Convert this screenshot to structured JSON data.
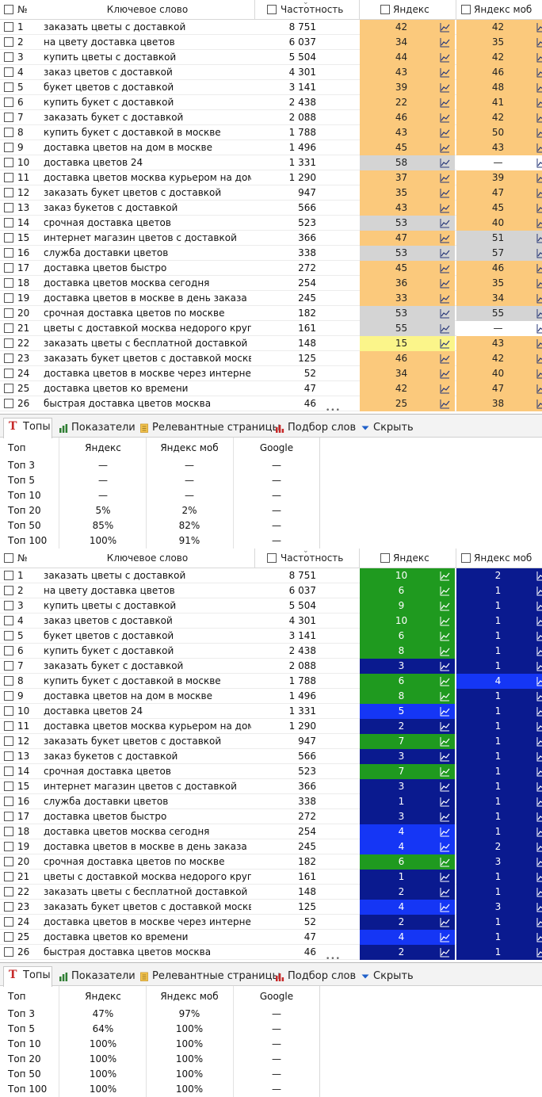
{
  "columns": {
    "num": "№",
    "keyword": "Ключевое слово",
    "freq": "Частотность",
    "yandex": "Яндекс",
    "yandex_mob": "Яндекс моб"
  },
  "tabs": [
    {
      "label": "Топы"
    },
    {
      "label": "Показатели"
    },
    {
      "label": "Релевантные страницы"
    },
    {
      "label": "Подбор слов"
    },
    {
      "label": "Скрыть"
    }
  ],
  "tops_header": {
    "top": "Топ",
    "yandex": "Яндекс",
    "yandex_mob": "Яндекс моб",
    "google": "Google"
  },
  "keywords": [
    {
      "n": "1",
      "kw": "заказать цветы с доставкой",
      "f": "8 751"
    },
    {
      "n": "2",
      "kw": "на цвету доставка цветов",
      "f": "6 037"
    },
    {
      "n": "3",
      "kw": "купить цветы с доставкой",
      "f": "5 504"
    },
    {
      "n": "4",
      "kw": "заказ цветов с доставкой",
      "f": "4 301"
    },
    {
      "n": "5",
      "kw": "букет цветов с доставкой",
      "f": "3 141"
    },
    {
      "n": "6",
      "kw": "купить букет с доставкой",
      "f": "2 438"
    },
    {
      "n": "7",
      "kw": "заказать букет с доставкой",
      "f": "2 088"
    },
    {
      "n": "8",
      "kw": "купить букет с доставкой в москве",
      "f": "1 788"
    },
    {
      "n": "9",
      "kw": "доставка цветов на дом в москве",
      "f": "1 496"
    },
    {
      "n": "10",
      "kw": "доставка цветов 24",
      "f": "1 331"
    },
    {
      "n": "11",
      "kw": "доставка цветов москва курьером на дом",
      "f": "1 290"
    },
    {
      "n": "12",
      "kw": "заказать букет цветов с доставкой",
      "f": "947"
    },
    {
      "n": "13",
      "kw": "заказ букетов с доставкой",
      "f": "566"
    },
    {
      "n": "14",
      "kw": "срочная доставка цветов",
      "f": "523"
    },
    {
      "n": "15",
      "kw": "интернет магазин цветов с доставкой",
      "f": "366"
    },
    {
      "n": "16",
      "kw": "служба доставки цветов",
      "f": "338"
    },
    {
      "n": "17",
      "kw": "доставка цветов быстро",
      "f": "272"
    },
    {
      "n": "18",
      "kw": "доставка цветов москва сегодня",
      "f": "254"
    },
    {
      "n": "19",
      "kw": "доставка цветов в москве в день заказа",
      "f": "245"
    },
    {
      "n": "20",
      "kw": "срочная доставка цветов по москве",
      "f": "182"
    },
    {
      "n": "21",
      "kw": "цветы с доставкой москва недорого кругл...",
      "f": "161"
    },
    {
      "n": "22",
      "kw": "заказать цветы с бесплатной доставкой",
      "f": "148"
    },
    {
      "n": "23",
      "kw": "заказать букет цветов с доставкой москв...",
      "f": "125"
    },
    {
      "n": "24",
      "kw": "доставка цветов в москве через интернет",
      "f": "52"
    },
    {
      "n": "25",
      "kw": "доставка цветов ко времени",
      "f": "47"
    },
    {
      "n": "26",
      "kw": "быстрая доставка цветов москва",
      "f": "46"
    }
  ],
  "colors": {
    "orange": "#fbc97c",
    "gray": "#d4d4d4",
    "yellow": "#fbf58a",
    "green": "#1f9a1f",
    "navy": "#0a1a8f",
    "blue": "#1536f5",
    "white": "#ffffff"
  },
  "before": {
    "yandex": [
      [
        "42",
        "orange"
      ],
      [
        "34",
        "orange"
      ],
      [
        "44",
        "orange"
      ],
      [
        "43",
        "orange"
      ],
      [
        "39",
        "orange"
      ],
      [
        "22",
        "orange"
      ],
      [
        "46",
        "orange"
      ],
      [
        "43",
        "orange"
      ],
      [
        "45",
        "orange"
      ],
      [
        "58",
        "gray"
      ],
      [
        "37",
        "orange"
      ],
      [
        "35",
        "orange"
      ],
      [
        "43",
        "orange"
      ],
      [
        "53",
        "gray"
      ],
      [
        "47",
        "orange"
      ],
      [
        "53",
        "gray"
      ],
      [
        "45",
        "orange"
      ],
      [
        "36",
        "orange"
      ],
      [
        "33",
        "orange"
      ],
      [
        "53",
        "gray"
      ],
      [
        "55",
        "gray"
      ],
      [
        "15",
        "yellow"
      ],
      [
        "46",
        "orange"
      ],
      [
        "34",
        "orange"
      ],
      [
        "42",
        "orange"
      ],
      [
        "25",
        "orange"
      ]
    ],
    "yandex_mob": [
      [
        "42",
        "orange"
      ],
      [
        "35",
        "orange"
      ],
      [
        "42",
        "orange"
      ],
      [
        "46",
        "orange"
      ],
      [
        "48",
        "orange"
      ],
      [
        "41",
        "orange"
      ],
      [
        "42",
        "orange"
      ],
      [
        "50",
        "orange"
      ],
      [
        "43",
        "orange"
      ],
      [
        "—",
        "white"
      ],
      [
        "39",
        "orange"
      ],
      [
        "47",
        "orange"
      ],
      [
        "45",
        "orange"
      ],
      [
        "40",
        "orange"
      ],
      [
        "51",
        "gray"
      ],
      [
        "57",
        "gray"
      ],
      [
        "46",
        "orange"
      ],
      [
        "35",
        "orange"
      ],
      [
        "34",
        "orange"
      ],
      [
        "55",
        "gray"
      ],
      [
        "—",
        "white"
      ],
      [
        "43",
        "orange"
      ],
      [
        "42",
        "orange"
      ],
      [
        "40",
        "orange"
      ],
      [
        "47",
        "orange"
      ],
      [
        "38",
        "orange"
      ]
    ],
    "tops": [
      {
        "top": "Топ 3",
        "y": "—",
        "ym": "—",
        "g": "—"
      },
      {
        "top": "Топ 5",
        "y": "—",
        "ym": "—",
        "g": "—"
      },
      {
        "top": "Топ 10",
        "y": "—",
        "ym": "—",
        "g": "—"
      },
      {
        "top": "Топ 20",
        "y": "5%",
        "ym": "2%",
        "g": "—"
      },
      {
        "top": "Топ 50",
        "y": "85%",
        "ym": "82%",
        "g": "—"
      },
      {
        "top": "Топ 100",
        "y": "100%",
        "ym": "91%",
        "g": "—"
      }
    ]
  },
  "after": {
    "yandex": [
      [
        "10",
        "green"
      ],
      [
        "6",
        "green"
      ],
      [
        "9",
        "green"
      ],
      [
        "10",
        "green"
      ],
      [
        "6",
        "green"
      ],
      [
        "8",
        "green"
      ],
      [
        "3",
        "navy"
      ],
      [
        "6",
        "green"
      ],
      [
        "8",
        "green"
      ],
      [
        "5",
        "blue"
      ],
      [
        "2",
        "navy"
      ],
      [
        "7",
        "green"
      ],
      [
        "3",
        "navy"
      ],
      [
        "7",
        "green"
      ],
      [
        "3",
        "navy"
      ],
      [
        "1",
        "navy"
      ],
      [
        "3",
        "navy"
      ],
      [
        "4",
        "blue"
      ],
      [
        "4",
        "blue"
      ],
      [
        "6",
        "green"
      ],
      [
        "1",
        "navy"
      ],
      [
        "2",
        "navy"
      ],
      [
        "4",
        "blue"
      ],
      [
        "2",
        "navy"
      ],
      [
        "4",
        "blue"
      ],
      [
        "2",
        "navy"
      ]
    ],
    "yandex_mob": [
      [
        "2",
        "navy"
      ],
      [
        "1",
        "navy"
      ],
      [
        "1",
        "navy"
      ],
      [
        "1",
        "navy"
      ],
      [
        "1",
        "navy"
      ],
      [
        "1",
        "navy"
      ],
      [
        "1",
        "navy"
      ],
      [
        "4",
        "blue"
      ],
      [
        "1",
        "navy"
      ],
      [
        "1",
        "navy"
      ],
      [
        "1",
        "navy"
      ],
      [
        "1",
        "navy"
      ],
      [
        "1",
        "navy"
      ],
      [
        "1",
        "navy"
      ],
      [
        "1",
        "navy"
      ],
      [
        "1",
        "navy"
      ],
      [
        "1",
        "navy"
      ],
      [
        "1",
        "navy"
      ],
      [
        "2",
        "navy"
      ],
      [
        "3",
        "navy"
      ],
      [
        "1",
        "navy"
      ],
      [
        "1",
        "navy"
      ],
      [
        "3",
        "navy"
      ],
      [
        "1",
        "navy"
      ],
      [
        "1",
        "navy"
      ],
      [
        "1",
        "navy"
      ]
    ],
    "tops": [
      {
        "top": "Топ 3",
        "y": "47%",
        "ym": "97%",
        "g": "—"
      },
      {
        "top": "Топ 5",
        "y": "64%",
        "ym": "100%",
        "g": "—"
      },
      {
        "top": "Топ 10",
        "y": "100%",
        "ym": "100%",
        "g": "—"
      },
      {
        "top": "Топ 20",
        "y": "100%",
        "ym": "100%",
        "g": "—"
      },
      {
        "top": "Топ 50",
        "y": "100%",
        "ym": "100%",
        "g": "—"
      },
      {
        "top": "Топ 100",
        "y": "100%",
        "ym": "100%",
        "g": "—"
      }
    ]
  }
}
